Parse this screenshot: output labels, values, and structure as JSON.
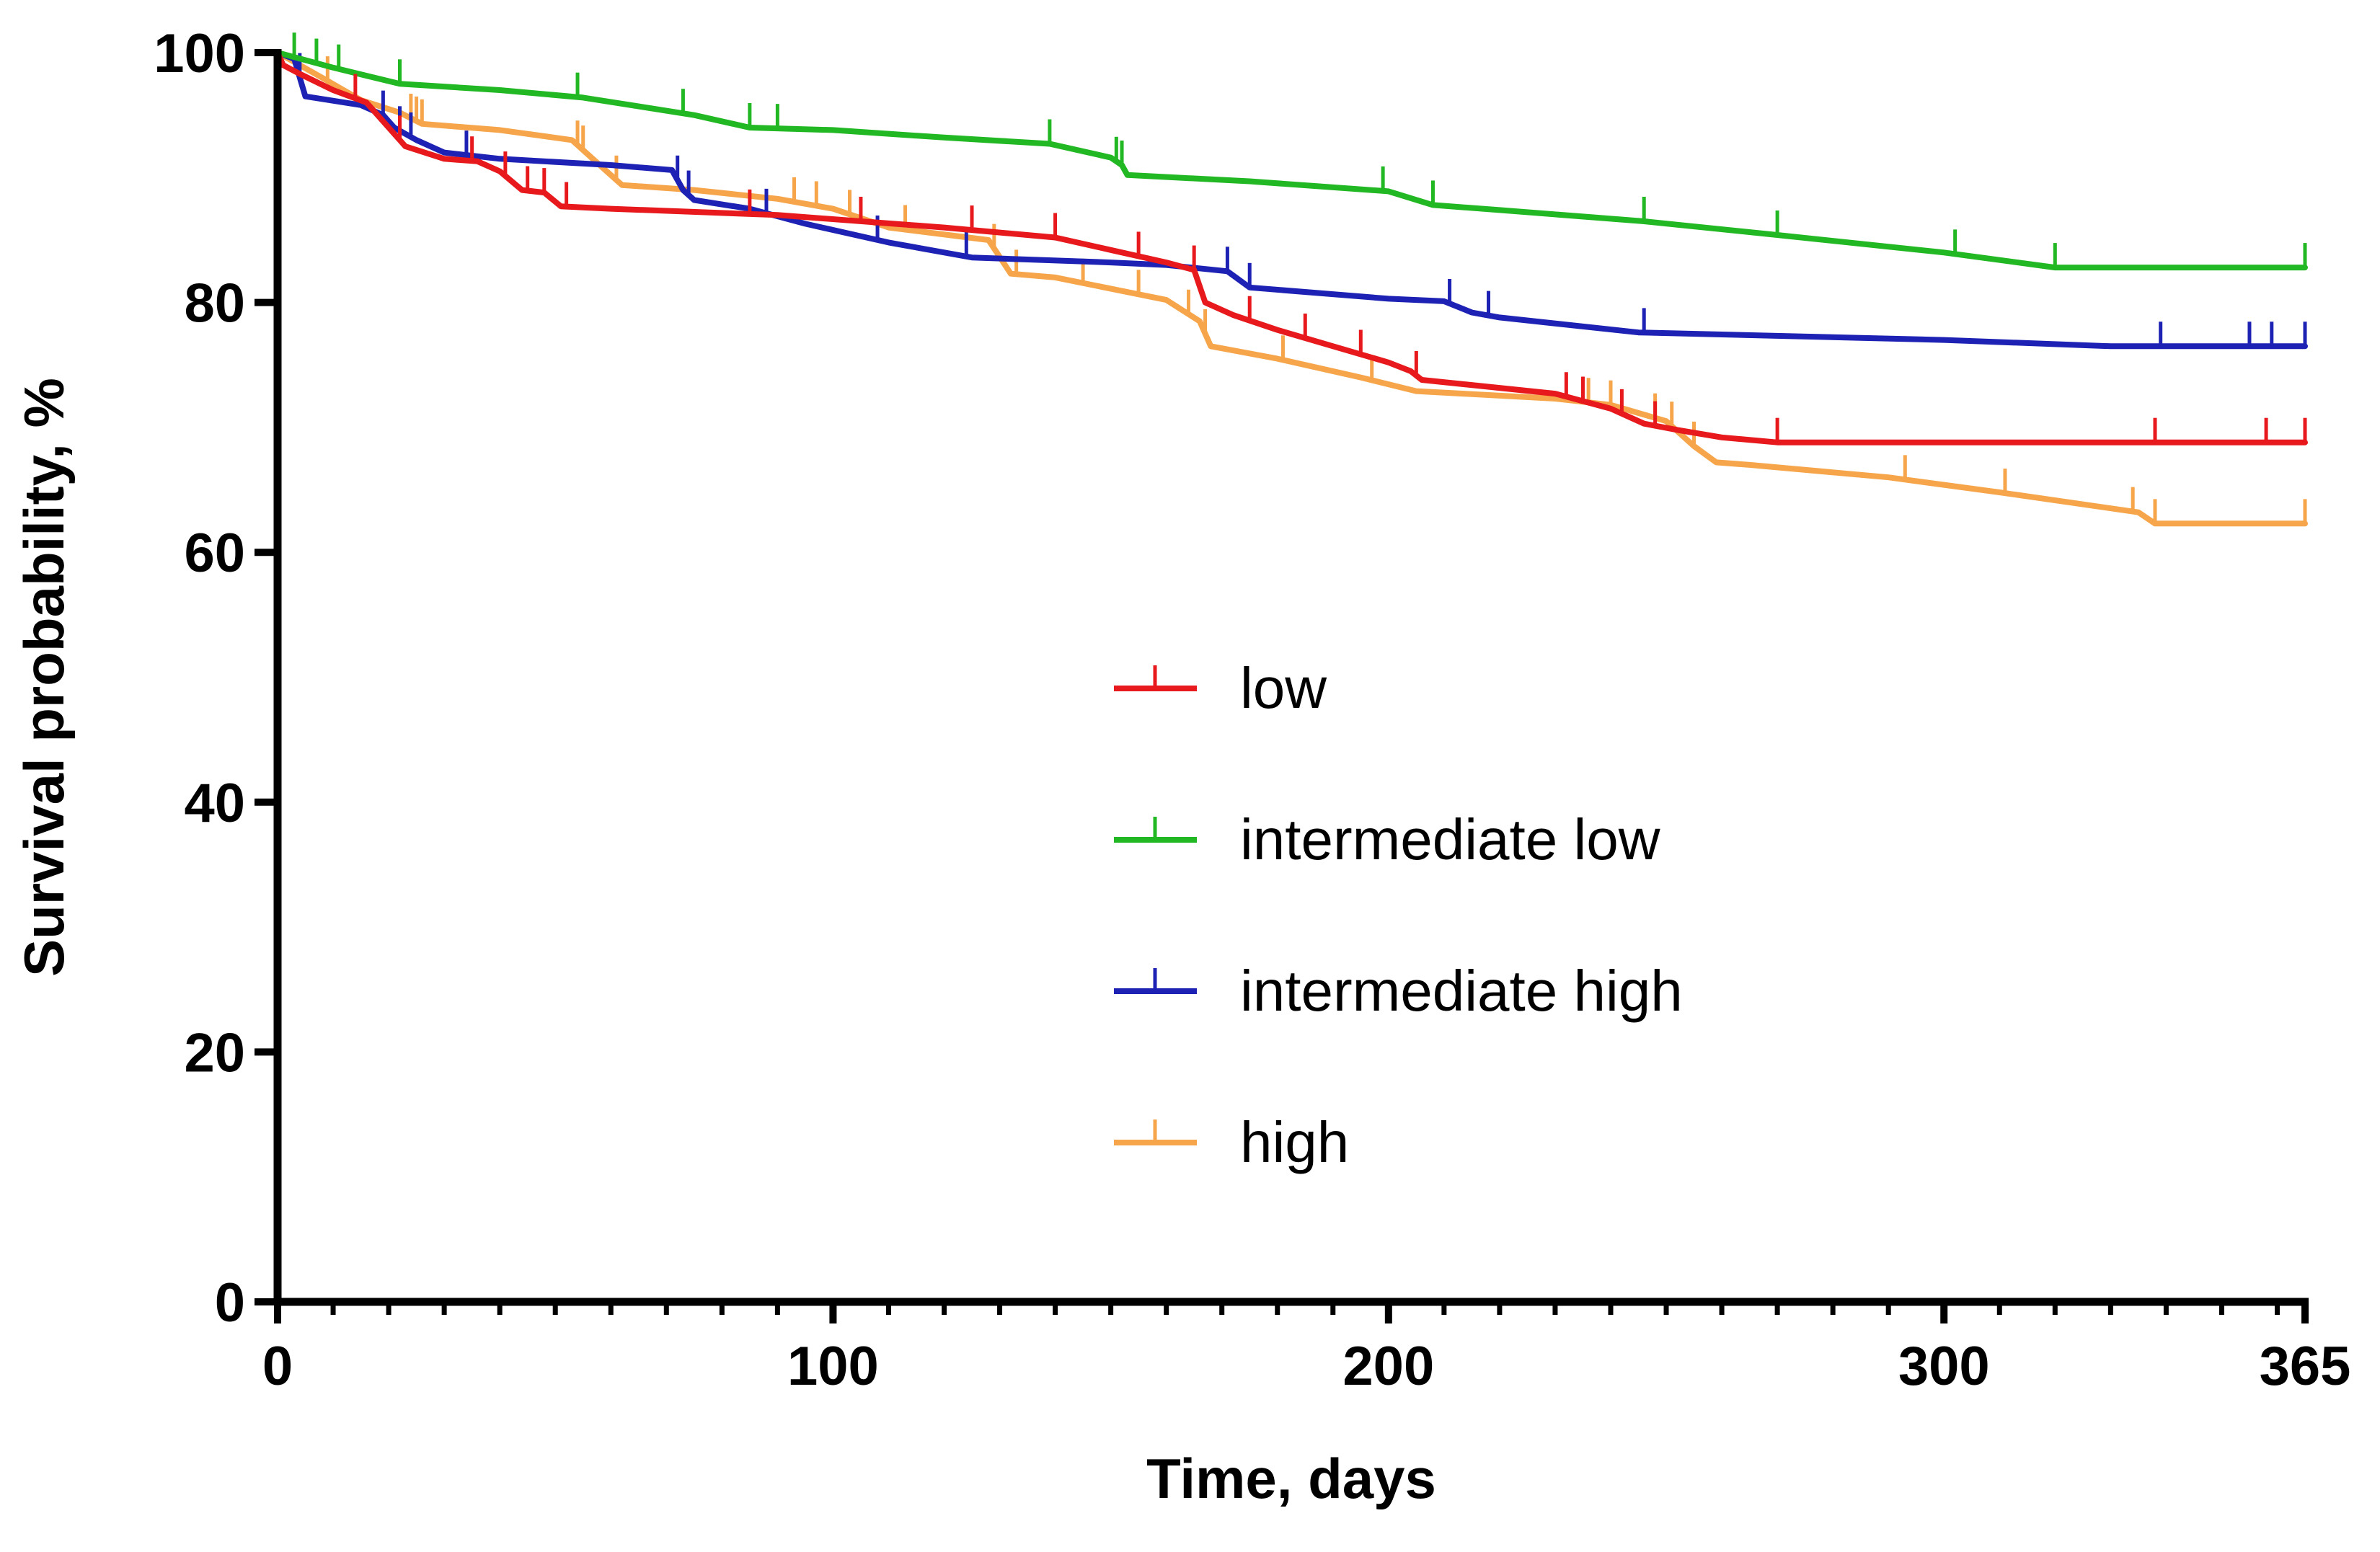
{
  "chart_data": {
    "type": "line",
    "subtype": "kaplan-meier-step",
    "title": "",
    "xlabel": "Time, days",
    "ylabel": "Survival probability, %",
    "xlim": [
      0,
      365
    ],
    "ylim": [
      0,
      100
    ],
    "x_ticks": [
      0,
      100,
      200,
      300,
      365
    ],
    "y_ticks": [
      0,
      20,
      40,
      60,
      80,
      100
    ],
    "x_minor_tick_step": 10,
    "legend_position": "center",
    "series": [
      {
        "name": "low",
        "color": "#e8191c",
        "points": [
          [
            0,
            100
          ],
          [
            1,
            99
          ],
          [
            4,
            98.3
          ],
          [
            10,
            97
          ],
          [
            16,
            96
          ],
          [
            20,
            94
          ],
          [
            23,
            92.5
          ],
          [
            30,
            91.5
          ],
          [
            36,
            91.3
          ],
          [
            40,
            90.5
          ],
          [
            44,
            89
          ],
          [
            48,
            88.8
          ],
          [
            51,
            87.7
          ],
          [
            60,
            87.5
          ],
          [
            90,
            87
          ],
          [
            120,
            86
          ],
          [
            140,
            85.2
          ],
          [
            150,
            84.2
          ],
          [
            160,
            83.2
          ],
          [
            165,
            82.6
          ],
          [
            167,
            80
          ],
          [
            172,
            79
          ],
          [
            180,
            77.8
          ],
          [
            190,
            76.5
          ],
          [
            200,
            75.2
          ],
          [
            204,
            74.5
          ],
          [
            206,
            73.8
          ],
          [
            230,
            72.7
          ],
          [
            240,
            71.5
          ],
          [
            246,
            70.3
          ],
          [
            252,
            69.8
          ],
          [
            260,
            69.2
          ],
          [
            270,
            68.8
          ],
          [
            365,
            68.8
          ]
        ],
        "censor_times": [
          14,
          22,
          35,
          41,
          45,
          48,
          52,
          85,
          105,
          125,
          140,
          155,
          165,
          175,
          185,
          195,
          205,
          232,
          235,
          242,
          248,
          270,
          338,
          358,
          365
        ]
      },
      {
        "name": "intermediate low",
        "color": "#22b823",
        "points": [
          [
            0,
            100
          ],
          [
            10,
            98.8
          ],
          [
            22,
            97.5
          ],
          [
            40,
            97
          ],
          [
            55,
            96.4
          ],
          [
            75,
            95
          ],
          [
            85,
            94
          ],
          [
            100,
            93.8
          ],
          [
            120,
            93.2
          ],
          [
            139,
            92.7
          ],
          [
            150,
            91.6
          ],
          [
            152,
            91
          ],
          [
            153,
            90.2
          ],
          [
            175,
            89.7
          ],
          [
            200,
            88.9
          ],
          [
            208,
            87.8
          ],
          [
            220,
            87.4
          ],
          [
            246,
            86.5
          ],
          [
            270,
            85.4
          ],
          [
            300,
            84
          ],
          [
            320,
            82.8
          ],
          [
            365,
            82.8
          ]
        ],
        "censor_times": [
          3,
          7,
          11,
          22,
          54,
          73,
          85,
          90,
          139,
          151,
          152,
          199,
          208,
          246,
          270,
          302,
          320,
          365
        ]
      },
      {
        "name": "intermediate high",
        "color": "#1e22b4",
        "points": [
          [
            0,
            100
          ],
          [
            3,
            99.5
          ],
          [
            5,
            96.5
          ],
          [
            15,
            95.8
          ],
          [
            19,
            95
          ],
          [
            21,
            94
          ],
          [
            25,
            93
          ],
          [
            30,
            92
          ],
          [
            40,
            91.5
          ],
          [
            60,
            91
          ],
          [
            71,
            90.6
          ],
          [
            73,
            89
          ],
          [
            75,
            88.2
          ],
          [
            85,
            87.5
          ],
          [
            95,
            86.3
          ],
          [
            110,
            84.8
          ],
          [
            125,
            83.6
          ],
          [
            150,
            83.2
          ],
          [
            160,
            83
          ],
          [
            171,
            82.5
          ],
          [
            175,
            81.2
          ],
          [
            200,
            80.3
          ],
          [
            210,
            80.1
          ],
          [
            215,
            79.2
          ],
          [
            220,
            78.8
          ],
          [
            245,
            77.6
          ],
          [
            300,
            77
          ],
          [
            330,
            76.5
          ],
          [
            365,
            76.5
          ]
        ],
        "censor_times": [
          4,
          19,
          22,
          24,
          34,
          72,
          74,
          88,
          108,
          124,
          171,
          175,
          211,
          218,
          246,
          339,
          355,
          359,
          365
        ]
      },
      {
        "name": "high",
        "color": "#f6a54a",
        "points": [
          [
            0,
            100
          ],
          [
            8,
            98
          ],
          [
            15,
            96.2
          ],
          [
            22,
            95.2
          ],
          [
            26,
            94.3
          ],
          [
            40,
            93.8
          ],
          [
            53,
            93
          ],
          [
            58,
            91
          ],
          [
            62,
            89.4
          ],
          [
            75,
            89
          ],
          [
            90,
            88.3
          ],
          [
            100,
            87.5
          ],
          [
            110,
            86
          ],
          [
            128,
            85
          ],
          [
            132,
            82.3
          ],
          [
            140,
            82
          ],
          [
            160,
            80.2
          ],
          [
            166,
            78.5
          ],
          [
            168,
            76.5
          ],
          [
            180,
            75.5
          ],
          [
            195,
            74
          ],
          [
            205,
            72.9
          ],
          [
            230,
            72.3
          ],
          [
            240,
            71.8
          ],
          [
            250,
            70.5
          ],
          [
            255,
            68.5
          ],
          [
            259,
            67.2
          ],
          [
            265,
            67
          ],
          [
            290,
            66
          ],
          [
            310,
            64.8
          ],
          [
            335,
            63.2
          ],
          [
            338,
            62.3
          ],
          [
            365,
            62.3
          ]
        ],
        "censor_times": [
          9,
          24,
          25,
          26,
          54,
          55,
          61,
          93,
          97,
          103,
          113,
          129,
          133,
          145,
          155,
          164,
          167,
          181,
          197,
          236,
          240,
          248,
          251,
          255,
          293,
          311,
          334,
          338,
          365
        ]
      }
    ]
  }
}
